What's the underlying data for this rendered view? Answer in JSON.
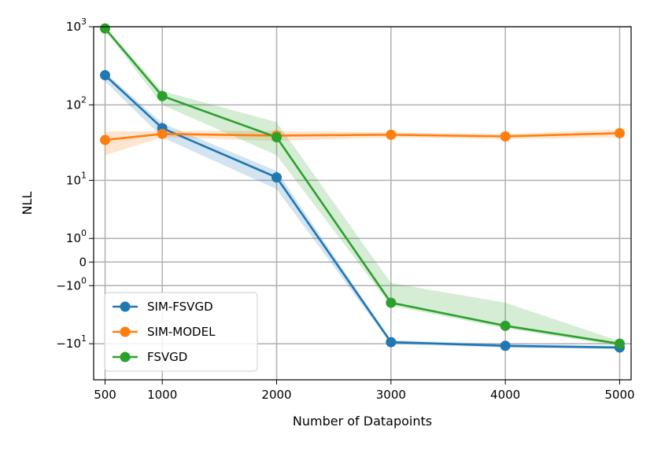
{
  "chart_data": {
    "type": "line",
    "title": "",
    "xlabel": "Number of Datapoints",
    "ylabel": "NLL",
    "x": [
      500,
      1000,
      2000,
      3000,
      4000,
      5000
    ],
    "xlim": [
      400,
      5100
    ],
    "ylim": [
      -30,
      1000
    ],
    "yscale": "symlog",
    "grid": true,
    "legend_position": "lower-left",
    "x_ticks": [
      {
        "value": 500,
        "label": "500"
      },
      {
        "value": 1000,
        "label": "1000"
      },
      {
        "value": 2000,
        "label": "2000"
      },
      {
        "value": 3000,
        "label": "3000"
      },
      {
        "value": 4000,
        "label": "4000"
      },
      {
        "value": 5000,
        "label": "5000"
      }
    ],
    "y_ticks": [
      {
        "value": 1000,
        "base": "10",
        "exp": "3"
      },
      {
        "value": 100,
        "base": "10",
        "exp": "2"
      },
      {
        "value": 10,
        "base": "10",
        "exp": "1"
      },
      {
        "value": 1,
        "base": "10",
        "exp": "0"
      },
      {
        "value": 0,
        "base": "0",
        "exp": ""
      },
      {
        "value": -1,
        "base": "−10",
        "exp": "0"
      },
      {
        "value": -10,
        "base": "−10",
        "exp": "1"
      }
    ],
    "series": [
      {
        "name": "SIM-FSVGD",
        "color": "#1f77b4",
        "values": [
          240,
          50,
          11,
          -9.5,
          -10.7,
          -11.3
        ],
        "lower": [
          200,
          38,
          7.5,
          -10.1,
          -11.3,
          -11.9
        ],
        "upper": [
          260,
          58,
          13.5,
          -8.9,
          -10.1,
          -10.7
        ]
      },
      {
        "name": "SIM-MODEL",
        "color": "#ff7f0e",
        "values": [
          35,
          42,
          40,
          41,
          39,
          43
        ],
        "lower": [
          22,
          38,
          34,
          38,
          36,
          38
        ],
        "upper": [
          45,
          46,
          46,
          44,
          42,
          48
        ]
      },
      {
        "name": "FSVGD",
        "color": "#2ca02c",
        "values": [
          950,
          130,
          38,
          -2.3,
          -5.5,
          -10
        ],
        "lower": [
          900,
          100,
          22,
          -2.6,
          -6,
          -10.8
        ],
        "upper": [
          1000,
          150,
          60,
          -0.85,
          -2.3,
          -9.2
        ]
      }
    ]
  }
}
